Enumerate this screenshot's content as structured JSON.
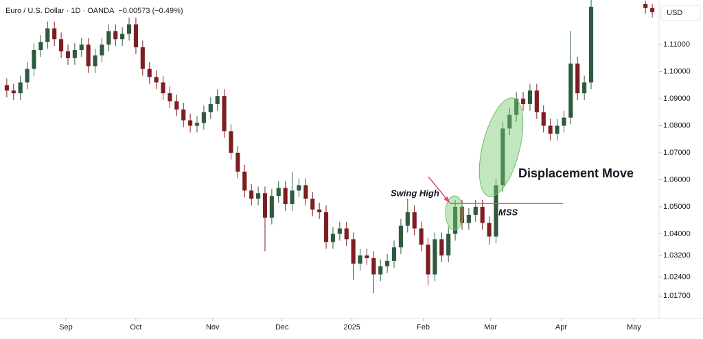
{
  "chart_data": {
    "type": "candlestick",
    "title": "Euro / U.S. Dollar · 1D · OANDA",
    "change": "−0.00573 (−0.49%)",
    "y_unit": "USD",
    "annotations": {
      "swing_high": "Swing High",
      "mss": "MSS",
      "displacement": "Displacement Move"
    },
    "up_color": "#2e5b3f",
    "down_color": "#7d1e22",
    "grid": false,
    "xlim": [
      -1,
      96
    ],
    "xticks": [
      {
        "value": 8.7,
        "label": "Sep"
      },
      {
        "value": 19.0,
        "label": "Oct"
      },
      {
        "value": 30.3,
        "label": "Nov"
      },
      {
        "value": 40.5,
        "label": "Dec"
      },
      {
        "value": 50.8,
        "label": "2025"
      },
      {
        "value": 61.3,
        "label": "Feb"
      },
      {
        "value": 71.2,
        "label": "Mar"
      },
      {
        "value": 81.6,
        "label": "Apr"
      },
      {
        "value": 92.3,
        "label": "May"
      }
    ],
    "ylim": [
      1.0087,
      1.1265
    ],
    "yticks": [
      {
        "value": 1.11,
        "label": "1.11000"
      },
      {
        "value": 1.1,
        "label": "1.10000"
      },
      {
        "value": 1.09,
        "label": "1.09000"
      },
      {
        "value": 1.08,
        "label": "1.08000"
      },
      {
        "value": 1.07,
        "label": "1.07000"
      },
      {
        "value": 1.06,
        "label": "1.06000"
      },
      {
        "value": 1.05,
        "label": "1.05000"
      },
      {
        "value": 1.04,
        "label": "1.04000"
      },
      {
        "value": 1.032,
        "label": "1.03200"
      },
      {
        "value": 1.024,
        "label": "1.02400"
      },
      {
        "value": 1.017,
        "label": "1.01700"
      }
    ],
    "open": [
      1.095,
      1.093,
      1.092,
      1.096,
      1.101,
      1.108,
      1.111,
      1.116,
      1.112,
      1.1075,
      1.105,
      1.108,
      1.11,
      1.102,
      1.106,
      1.11,
      1.115,
      1.112,
      1.114,
      1.1175,
      1.109,
      1.101,
      1.098,
      1.096,
      1.092,
      1.089,
      1.086,
      1.082,
      1.08,
      1.081,
      1.085,
      1.088,
      1.091,
      1.078,
      1.07,
      1.063,
      1.056,
      1.053,
      1.055,
      1.046,
      1.054,
      1.057,
      1.051,
      1.056,
      1.058,
      1.053,
      1.049,
      1.048,
      1.037,
      1.04,
      1.042,
      1.038,
      1.029,
      1.032,
      1.031,
      1.025,
      1.028,
      1.03,
      1.035,
      1.043,
      1.048,
      1.042,
      1.036,
      1.025,
      1.038,
      1.032,
      1.04,
      1.05,
      1.044,
      1.047,
      1.05,
      1.044,
      1.039,
      1.058,
      1.079,
      1.084,
      1.09,
      1.088,
      1.093,
      1.085,
      1.08,
      1.077,
      1.08,
      1.083,
      1.103,
      1.092,
      1.096,
      null,
      null,
      null,
      null,
      null,
      null,
      null,
      1.125,
      1.1235
    ],
    "high": [
      1.0975,
      1.0955,
      1.0985,
      1.1035,
      1.1105,
      1.1135,
      1.1185,
      1.1185,
      1.1145,
      1.11,
      1.1105,
      1.1125,
      1.1125,
      1.1085,
      1.1125,
      1.1175,
      1.1175,
      1.1165,
      1.12,
      1.12,
      1.1115,
      1.1035,
      1.1005,
      1.0985,
      1.0945,
      1.0915,
      1.0885,
      1.0845,
      1.0835,
      1.0875,
      1.0905,
      1.0935,
      1.0935,
      1.0805,
      1.0725,
      1.0655,
      1.0585,
      1.0575,
      1.0575,
      1.0565,
      1.0595,
      1.0595,
      1.063,
      1.0605,
      1.0605,
      1.0555,
      1.0515,
      1.0505,
      1.0425,
      1.0445,
      1.0445,
      1.0405,
      1.0345,
      1.0345,
      1.0335,
      1.0305,
      1.0325,
      1.0375,
      1.0455,
      1.053,
      1.0505,
      1.0445,
      1.0385,
      1.0405,
      1.0405,
      1.0425,
      1.0525,
      1.0525,
      1.0495,
      1.0525,
      1.0525,
      1.0465,
      1.0605,
      1.0815,
      1.0865,
      1.0925,
      1.0925,
      1.0955,
      1.0955,
      1.0875,
      1.0825,
      1.0825,
      1.0855,
      1.115,
      1.1055,
      1.0985,
      1.1265,
      null,
      null,
      null,
      null,
      null,
      null,
      null,
      1.1262,
      1.125
    ],
    "low": [
      1.0905,
      1.0895,
      1.0895,
      1.0935,
      1.0985,
      1.1055,
      1.1085,
      1.1095,
      1.105,
      1.1025,
      1.1025,
      1.1055,
      1.0995,
      1.0995,
      1.1035,
      1.1075,
      1.1095,
      1.1095,
      1.1115,
      1.1065,
      1.0985,
      1.0955,
      1.0935,
      1.0895,
      1.0865,
      1.0835,
      1.0795,
      1.0775,
      1.0775,
      1.0785,
      1.0825,
      1.0855,
      1.0755,
      1.0675,
      1.0605,
      1.0535,
      1.0505,
      1.0505,
      1.0335,
      1.0435,
      1.0515,
      1.0485,
      1.0485,
      1.0535,
      1.0505,
      1.0465,
      1.0455,
      1.0345,
      1.0345,
      1.0375,
      1.0355,
      1.023,
      1.0265,
      1.0285,
      1.018,
      1.0225,
      1.0255,
      1.0275,
      1.0325,
      1.0405,
      1.0395,
      1.0335,
      1.021,
      1.0225,
      1.0295,
      1.0295,
      1.0375,
      1.0415,
      1.0415,
      1.0445,
      1.0415,
      1.036,
      1.0365,
      1.0555,
      1.0765,
      1.0815,
      1.0855,
      1.0855,
      1.0825,
      1.0775,
      1.0745,
      1.0745,
      1.0775,
      1.0805,
      1.0895,
      1.0895,
      1.0935,
      null,
      null,
      null,
      null,
      null,
      null,
      null,
      1.1215,
      1.12
    ],
    "close": [
      1.093,
      1.092,
      1.096,
      1.101,
      1.108,
      1.111,
      1.116,
      1.112,
      1.1075,
      1.105,
      1.108,
      1.11,
      1.102,
      1.106,
      1.11,
      1.115,
      1.112,
      1.114,
      1.1175,
      1.109,
      1.101,
      1.098,
      1.096,
      1.092,
      1.089,
      1.086,
      1.082,
      1.08,
      1.081,
      1.085,
      1.088,
      1.091,
      1.078,
      1.07,
      1.063,
      1.056,
      1.053,
      1.055,
      1.046,
      1.054,
      1.057,
      1.051,
      1.056,
      1.058,
      1.053,
      1.049,
      1.048,
      1.037,
      1.04,
      1.042,
      1.038,
      1.029,
      1.032,
      1.031,
      1.025,
      1.028,
      1.03,
      1.035,
      1.043,
      1.048,
      1.042,
      1.036,
      1.025,
      1.038,
      1.032,
      1.04,
      1.05,
      1.044,
      1.047,
      1.05,
      1.044,
      1.039,
      1.058,
      1.079,
      1.084,
      1.09,
      1.088,
      1.093,
      1.085,
      1.08,
      1.077,
      1.08,
      1.083,
      1.103,
      1.092,
      1.096,
      1.124,
      null,
      null,
      null,
      null,
      null,
      null,
      null,
      1.1235,
      1.122
    ]
  }
}
